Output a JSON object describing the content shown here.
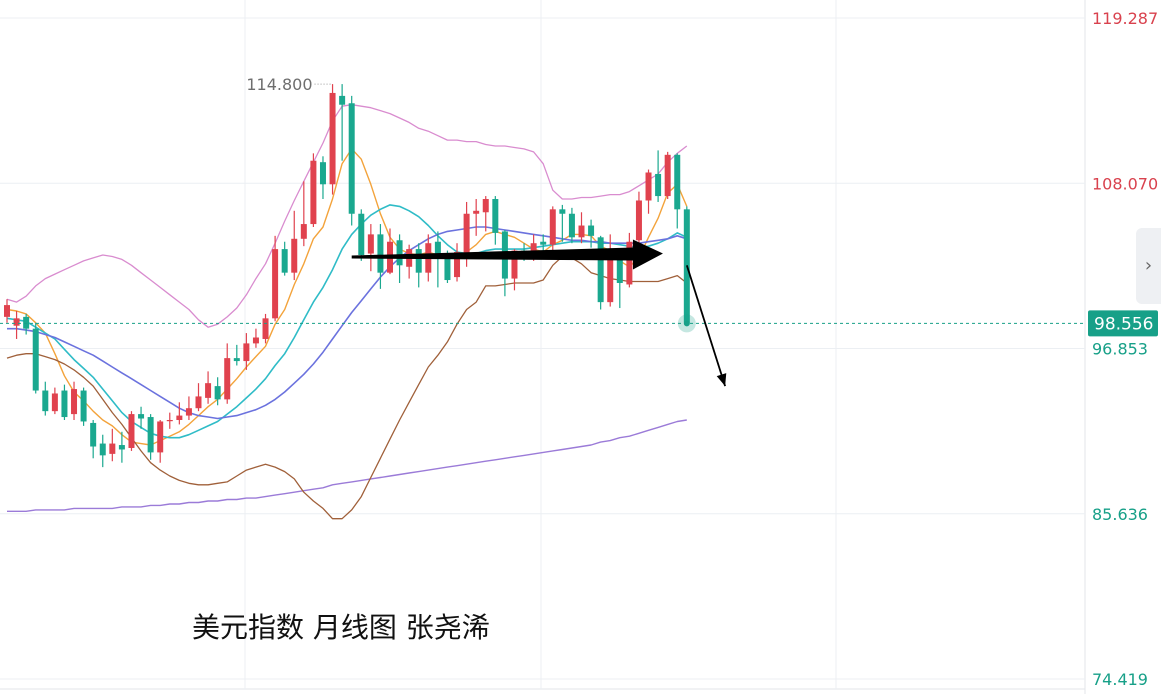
{
  "watermark_caption": "美元指数 月线图 张尧浠",
  "high_marker": "114.800",
  "price_badge": "98.556",
  "colors": {
    "up": "#e0424e",
    "down": "#1aa88f",
    "grid": "#eceff3",
    "axis_red": "#d9424e",
    "axis_green": "#17a088",
    "ma5": "#f3a33b",
    "ma10": "#2fbcc7",
    "ma20": "#6b72de",
    "ma60": "#9b7bd8",
    "boll_upper": "#d98ccf",
    "boll_lower": "#a0603a",
    "badge_bg": "#17a088"
  },
  "expand_icon": "chevron-right-icon",
  "chart_data": {
    "type": "candlestick",
    "title": "美元指数 月线图 张尧浠",
    "ylim": [
      74.419,
      119.287
    ],
    "y_ticks": [
      {
        "label": "119.287",
        "value": 119.287,
        "color": "red"
      },
      {
        "label": "108.070",
        "value": 108.07,
        "color": "red"
      },
      {
        "label": "96.853",
        "value": 96.853,
        "color": "green"
      },
      {
        "label": "85.636",
        "value": 85.636,
        "color": "green"
      },
      {
        "label": "74.419",
        "value": 74.419,
        "color": "green"
      }
    ],
    "current_price": 98.556,
    "annotated_high": 114.8,
    "candles": [
      [
        99.0,
        99.8,
        100.2,
        98.6
      ],
      [
        98.4,
        98.9,
        99.4,
        97.5
      ],
      [
        99.0,
        98.2,
        99.2,
        97.8
      ],
      [
        98.2,
        94.0,
        98.6,
        93.8
      ],
      [
        94.0,
        92.6,
        94.6,
        92.3
      ],
      [
        92.6,
        93.8,
        94.2,
        92.4
      ],
      [
        94.0,
        92.2,
        94.4,
        92.0
      ],
      [
        92.4,
        94.1,
        94.6,
        92.0
      ],
      [
        94.0,
        91.9,
        94.2,
        91.6
      ],
      [
        91.8,
        90.2,
        92.0,
        89.4
      ],
      [
        90.4,
        89.6,
        91.0,
        88.8
      ],
      [
        89.7,
        90.4,
        91.4,
        89.2
      ],
      [
        90.3,
        90.0,
        91.2,
        89.1
      ],
      [
        90.1,
        92.4,
        92.6,
        89.9
      ],
      [
        92.4,
        92.1,
        92.9,
        91.4
      ],
      [
        92.2,
        89.8,
        92.4,
        89.3
      ],
      [
        89.8,
        91.9,
        92.0,
        89.1
      ],
      [
        92.0,
        92.0,
        92.5,
        91.4
      ],
      [
        92.0,
        92.3,
        93.2,
        91.7
      ],
      [
        92.3,
        92.8,
        93.6,
        92.0
      ],
      [
        92.8,
        93.6,
        94.5,
        92.6
      ],
      [
        93.5,
        94.5,
        95.3,
        93.1
      ],
      [
        94.3,
        93.4,
        94.9,
        93.0
      ],
      [
        93.4,
        96.2,
        97.2,
        93.1
      ],
      [
        96.2,
        96.0,
        97.1,
        95.7
      ],
      [
        96.0,
        97.2,
        97.9,
        95.4
      ],
      [
        97.2,
        97.6,
        98.2,
        96.9
      ],
      [
        97.5,
        98.9,
        99.2,
        97.2
      ],
      [
        98.9,
        103.6,
        104.5,
        98.7
      ],
      [
        103.6,
        102.0,
        104.1,
        101.8
      ],
      [
        102.0,
        104.3,
        106.2,
        101.5
      ],
      [
        104.3,
        105.3,
        108.2,
        103.8
      ],
      [
        105.3,
        109.6,
        110.1,
        105.1
      ],
      [
        109.5,
        108.0,
        109.9,
        107.0
      ],
      [
        108.0,
        114.2,
        114.8,
        107.3
      ],
      [
        114.0,
        113.4,
        114.8,
        109.6
      ],
      [
        113.5,
        106.0,
        114.0,
        105.2
      ],
      [
        106.0,
        103.2,
        106.3,
        102.8
      ],
      [
        103.3,
        104.6,
        105.3,
        102.1
      ],
      [
        104.6,
        102.0,
        105.3,
        100.9
      ],
      [
        102.0,
        104.1,
        105.0,
        101.9
      ],
      [
        104.2,
        102.5,
        104.6,
        101.3
      ],
      [
        102.4,
        103.6,
        103.9,
        101.6
      ],
      [
        103.6,
        102.0,
        104.0,
        101.0
      ],
      [
        102.0,
        104.0,
        104.6,
        101.4
      ],
      [
        104.1,
        103.2,
        104.8,
        101.0
      ],
      [
        103.1,
        101.5,
        103.5,
        101.3
      ],
      [
        101.7,
        103.4,
        104.0,
        101.4
      ],
      [
        103.2,
        106.0,
        106.8,
        102.4
      ],
      [
        106.0,
        106.2,
        107.0,
        104.5
      ],
      [
        106.1,
        107.0,
        107.2,
        104.8
      ],
      [
        107.0,
        104.7,
        107.2,
        103.9
      ],
      [
        104.8,
        101.6,
        104.9,
        100.4
      ],
      [
        101.6,
        103.5,
        103.6,
        100.8
      ],
      [
        103.5,
        103.4,
        104.0,
        102.8
      ],
      [
        103.5,
        104.0,
        104.6,
        102.8
      ],
      [
        104.1,
        103.9,
        104.6,
        103.3
      ],
      [
        103.9,
        106.3,
        106.5,
        103.5
      ],
      [
        106.3,
        106.0,
        106.6,
        104.1
      ],
      [
        106.0,
        104.4,
        106.4,
        104.0
      ],
      [
        104.4,
        105.2,
        106.1,
        104.0
      ],
      [
        105.2,
        104.5,
        105.6,
        103.7
      ],
      [
        104.4,
        100.0,
        104.5,
        99.5
      ],
      [
        100.0,
        103.3,
        104.6,
        99.7
      ],
      [
        103.0,
        101.3,
        103.3,
        99.6
      ],
      [
        101.2,
        104.1,
        104.7,
        101.0
      ],
      [
        104.2,
        106.9,
        107.5,
        103.8
      ],
      [
        106.9,
        108.8,
        109.0,
        106.0
      ],
      [
        108.7,
        107.2,
        110.3,
        106.8
      ],
      [
        107.2,
        110.0,
        110.2,
        107.0
      ],
      [
        110.0,
        106.3,
        110.1,
        105.0
      ],
      [
        106.3,
        98.6,
        106.5,
        98.4
      ]
    ],
    "series": [
      {
        "name": "MA5",
        "values": [
          99.5,
          99.4,
          99.2,
          98.6,
          97.9,
          96.5,
          95.0,
          93.9,
          93.3,
          92.6,
          92.0,
          91.6,
          91.0,
          90.5,
          90.4,
          90.3,
          90.6,
          90.9,
          91.2,
          91.7,
          92.3,
          92.9,
          93.4,
          94.1,
          94.8,
          95.6,
          96.3,
          97.0,
          98.5,
          99.5,
          101.2,
          102.6,
          104.3,
          105.1,
          107.0,
          109.4,
          110.4,
          109.7,
          108.0,
          106.0,
          104.4,
          103.6,
          103.3,
          103.2,
          103.4,
          103.2,
          103.1,
          103.1,
          103.4,
          103.9,
          104.6,
          104.8,
          104.6,
          104.4,
          104.0,
          103.6,
          103.4,
          103.9,
          104.2,
          104.6,
          104.6,
          104.5,
          103.8,
          103.5,
          102.8,
          102.4,
          103.0,
          104.4,
          105.7,
          107.4,
          108.0,
          106.5
        ]
      },
      {
        "name": "MA10",
        "values": [
          98.9,
          98.8,
          98.7,
          98.3,
          97.9,
          97.5,
          96.8,
          96.1,
          95.5,
          94.9,
          94.1,
          93.3,
          92.5,
          91.9,
          91.5,
          91.1,
          90.9,
          90.8,
          90.8,
          91.0,
          91.3,
          91.6,
          91.9,
          92.4,
          92.9,
          93.5,
          94.1,
          94.8,
          95.7,
          96.5,
          97.6,
          98.8,
          100.0,
          101.0,
          102.2,
          103.6,
          104.6,
          105.3,
          105.9,
          106.3,
          106.6,
          106.5,
          106.2,
          105.8,
          105.2,
          104.5,
          103.9,
          103.4,
          103.3,
          103.3,
          103.5,
          103.6,
          103.6,
          103.6,
          103.6,
          103.7,
          103.8,
          103.9,
          104.0,
          104.1,
          104.1,
          104.1,
          104.0,
          104.0,
          103.9,
          103.8,
          103.7,
          103.8,
          104.0,
          104.3,
          104.7,
          104.4
        ]
      },
      {
        "name": "MA20",
        "values": [
          98.2,
          98.2,
          98.1,
          98.0,
          97.8,
          97.6,
          97.3,
          97.0,
          96.7,
          96.4,
          96.0,
          95.6,
          95.2,
          94.8,
          94.4,
          94.0,
          93.6,
          93.2,
          92.8,
          92.5,
          92.3,
          92.2,
          92.1,
          92.2,
          92.3,
          92.5,
          92.7,
          93.0,
          93.4,
          93.9,
          94.5,
          95.1,
          95.8,
          96.6,
          97.5,
          98.4,
          99.3,
          100.1,
          100.9,
          101.7,
          102.4,
          103.0,
          103.5,
          103.9,
          104.3,
          104.6,
          104.8,
          104.9,
          105.0,
          105.1,
          105.1,
          105.0,
          104.9,
          104.8,
          104.7,
          104.6,
          104.5,
          104.4,
          104.3,
          104.2,
          104.2,
          104.1,
          104.1,
          104.0,
          104.0,
          104.0,
          104.0,
          104.1,
          104.2,
          104.3,
          104.5,
          104.3
        ]
      },
      {
        "name": "MA60",
        "values": [
          85.8,
          85.8,
          85.8,
          85.9,
          85.9,
          85.9,
          85.9,
          86.0,
          86.0,
          86.0,
          86.0,
          86.0,
          86.1,
          86.1,
          86.1,
          86.2,
          86.2,
          86.3,
          86.3,
          86.4,
          86.4,
          86.5,
          86.5,
          86.6,
          86.6,
          86.7,
          86.7,
          86.8,
          86.9,
          87.0,
          87.1,
          87.2,
          87.3,
          87.4,
          87.6,
          87.7,
          87.8,
          87.9,
          88.0,
          88.1,
          88.2,
          88.3,
          88.4,
          88.5,
          88.6,
          88.7,
          88.8,
          88.9,
          89.0,
          89.1,
          89.2,
          89.3,
          89.4,
          89.5,
          89.6,
          89.7,
          89.8,
          89.9,
          90.0,
          90.1,
          90.2,
          90.3,
          90.5,
          90.6,
          90.8,
          90.9,
          91.1,
          91.3,
          91.5,
          91.7,
          91.9,
          92.0
        ]
      },
      {
        "name": "BOLL-UPPER",
        "values": [
          100.2,
          100.0,
          100.4,
          101.1,
          101.6,
          101.9,
          102.2,
          102.5,
          102.8,
          103.0,
          103.2,
          103.1,
          102.9,
          102.5,
          102.0,
          101.5,
          101.0,
          100.5,
          100.0,
          99.5,
          98.8,
          98.3,
          98.5,
          99.0,
          99.6,
          100.5,
          101.6,
          102.6,
          104.0,
          105.5,
          106.9,
          108.2,
          109.5,
          110.8,
          112.3,
          113.3,
          113.4,
          113.3,
          113.2,
          113.0,
          112.8,
          112.5,
          112.2,
          111.8,
          111.6,
          111.3,
          111.0,
          111.0,
          110.9,
          110.9,
          110.7,
          110.6,
          110.6,
          110.5,
          110.4,
          110.2,
          109.4,
          107.6,
          107.0,
          107.0,
          107.1,
          107.1,
          107.2,
          107.3,
          107.3,
          107.5,
          107.9,
          108.3,
          108.7,
          109.5,
          110.1,
          110.6
        ]
      },
      {
        "name": "BOLL-LOWER",
        "values": [
          96.2,
          96.4,
          96.5,
          96.5,
          96.3,
          96.1,
          95.8,
          95.4,
          94.9,
          94.3,
          93.4,
          92.5,
          91.7,
          90.8,
          89.9,
          89.1,
          88.6,
          88.2,
          87.9,
          87.7,
          87.6,
          87.6,
          87.7,
          87.8,
          88.2,
          88.6,
          88.8,
          89.0,
          88.8,
          88.5,
          88.0,
          87.1,
          86.5,
          86.0,
          85.3,
          85.3,
          85.9,
          86.8,
          88.1,
          89.4,
          90.7,
          92.0,
          93.2,
          94.4,
          95.6,
          96.4,
          97.3,
          98.5,
          99.5,
          100.0,
          101.1,
          101.1,
          101.2,
          101.3,
          101.3,
          101.3,
          101.5,
          102.5,
          103.1,
          103.0,
          102.6,
          102.0,
          101.8,
          101.6,
          101.5,
          101.4,
          101.4,
          101.4,
          101.4,
          101.6,
          101.8,
          101.3
        ]
      }
    ],
    "annotations": [
      {
        "type": "arrow",
        "style": "thick",
        "direction": "horizontal",
        "from": [
          36,
          103.3
        ],
        "to": [
          66,
          103.3
        ]
      },
      {
        "type": "arrow",
        "style": "thin",
        "direction": "down-right",
        "from": [
          71,
          102.5
        ],
        "to": [
          75,
          94.3
        ]
      }
    ]
  }
}
